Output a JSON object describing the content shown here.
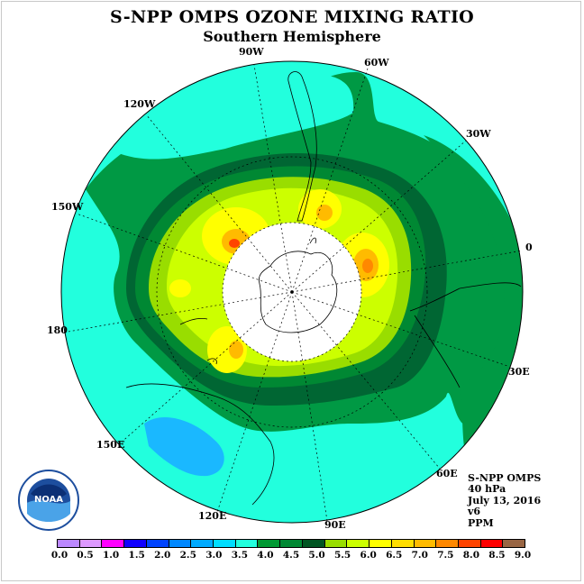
{
  "header": {
    "title": "S-NPP OMPS OZONE MIXING RATIO",
    "subtitle": "Southern Hemisphere"
  },
  "map": {
    "projection": "south-polar-stereographic",
    "longitude_labels": {
      "90W": "90W",
      "60W": "60W",
      "30W": "30W",
      "0": "0",
      "30E": "30E",
      "60E": "60E",
      "90E": "90E",
      "120E": "120E",
      "150E": "150E",
      "180": "180",
      "150W": "150W",
      "120W": "120W"
    },
    "pole_missing_data_color": "#ffffff",
    "ocean_low_color": "#22ffdd",
    "mid_color": "#009944",
    "high_core_color": "#ff9900"
  },
  "info": {
    "line1": "S-NPP OMPS",
    "line2": "40 hPa",
    "line3": "July 13, 2016",
    "line4": "v6",
    "line5": "PPM"
  },
  "colorbar": {
    "colors": [
      "#bb88ff",
      "#dd99ff",
      "#ff00ff",
      "#1100ff",
      "#0044ff",
      "#0088ff",
      "#00aaff",
      "#00ddff",
      "#22ffdd",
      "#009933",
      "#008833",
      "#005522",
      "#99dd00",
      "#ccff00",
      "#ffff00",
      "#ffdd00",
      "#ffbb00",
      "#ff8800",
      "#ff4400",
      "#ff0000",
      "#996644"
    ],
    "ticks": [
      "0.0",
      "0.5",
      "1.0",
      "1.5",
      "2.0",
      "2.5",
      "3.0",
      "3.5",
      "4.0",
      "4.5",
      "5.0",
      "5.5",
      "6.0",
      "6.5",
      "7.0",
      "7.5",
      "8.0",
      "8.5",
      "9.0"
    ]
  },
  "logo": {
    "text": "NOAA",
    "color": "#1d4e9e"
  }
}
